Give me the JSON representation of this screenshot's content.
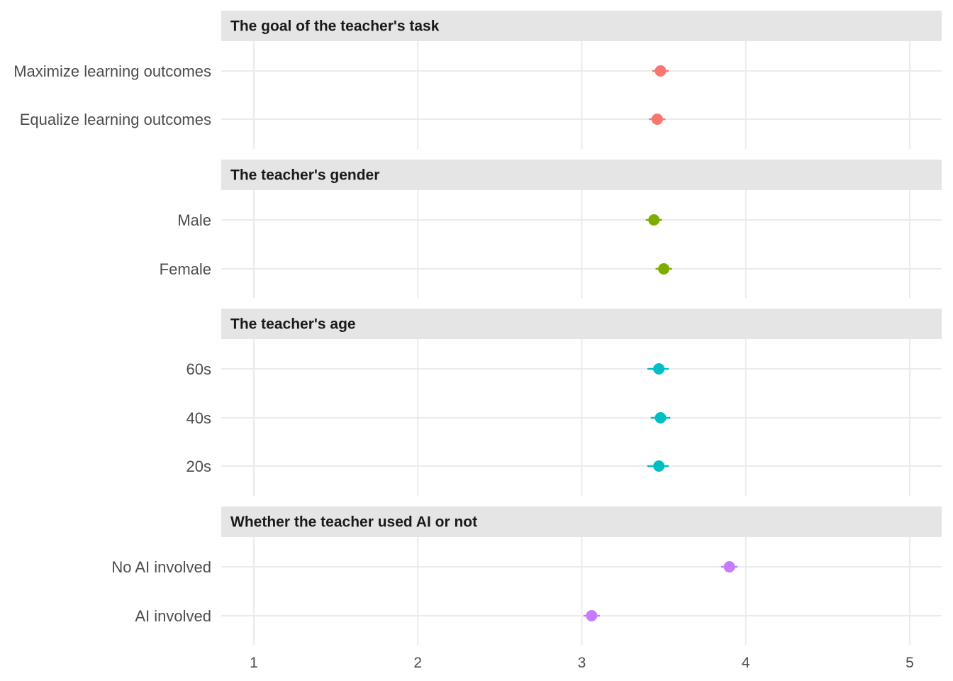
{
  "chart_data": {
    "type": "scatter",
    "subtype": "faceted-dot-errorbar",
    "x_ticks": [
      "1",
      "2",
      "3",
      "4",
      "5"
    ],
    "xlim": [
      0.8,
      5.2
    ],
    "grid": true,
    "panels": [
      {
        "title": "The goal of the teacher's task",
        "color": "#F8766D",
        "rows": [
          {
            "label": "Maximize learning outcomes",
            "value": 3.48,
            "lower": 3.43,
            "upper": 3.53
          },
          {
            "label": "Equalize learning outcomes",
            "value": 3.46,
            "lower": 3.41,
            "upper": 3.51
          }
        ]
      },
      {
        "title": "The teacher's gender",
        "color": "#7CAE00",
        "rows": [
          {
            "label": "Male",
            "value": 3.44,
            "lower": 3.39,
            "upper": 3.49
          },
          {
            "label": "Female",
            "value": 3.5,
            "lower": 3.45,
            "upper": 3.55
          }
        ]
      },
      {
        "title": "The teacher's age",
        "color": "#00BFC4",
        "rows": [
          {
            "label": "60s",
            "value": 3.47,
            "lower": 3.4,
            "upper": 3.53
          },
          {
            "label": "40s",
            "value": 3.48,
            "lower": 3.42,
            "upper": 3.54
          },
          {
            "label": "20s",
            "value": 3.47,
            "lower": 3.4,
            "upper": 3.53
          }
        ]
      },
      {
        "title": "Whether the teacher used AI or not",
        "color": "#C77CFF",
        "rows": [
          {
            "label": "No AI involved",
            "value": 3.9,
            "lower": 3.85,
            "upper": 3.95
          },
          {
            "label": "AI involved",
            "value": 3.06,
            "lower": 3.01,
            "upper": 3.11
          }
        ]
      }
    ]
  }
}
